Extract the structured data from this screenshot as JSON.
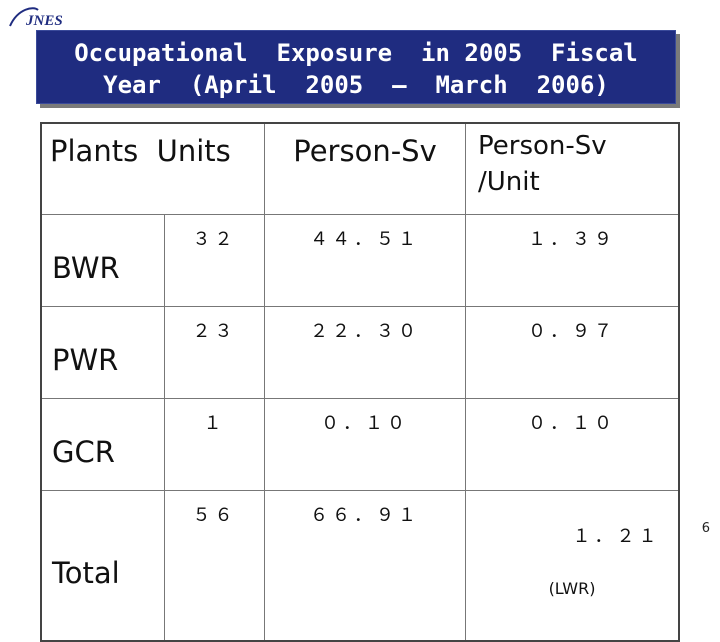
{
  "logo": {
    "text": "JNES",
    "color": "#1f2c80"
  },
  "title": {
    "line1": "Occupational  Exposure  in 2005  Fiscal",
    "line2": "Year  (April  2005  –  March  2006)",
    "bg_color": "#1f2c80"
  },
  "table": {
    "headers": [
      "Plants",
      "Units",
      "Person-Sv",
      "Person-Sv",
      "/Unit"
    ],
    "rows": [
      {
        "plant": "BWR",
        "units": "３２",
        "person_sv": "４４．５１",
        "per_unit": "１．３９",
        "note": ""
      },
      {
        "plant": "PWR",
        "units": "２３",
        "person_sv": "２２．３０",
        "per_unit": "０．９７",
        "note": ""
      },
      {
        "plant": "GCR",
        "units": "１",
        "person_sv": "０．１０",
        "per_unit": "０．１０",
        "note": ""
      },
      {
        "plant": "Total",
        "units": "５６",
        "person_sv": "６６．９１",
        "per_unit": "１．２１",
        "note": "(LWR)"
      }
    ]
  },
  "page_number": "6"
}
